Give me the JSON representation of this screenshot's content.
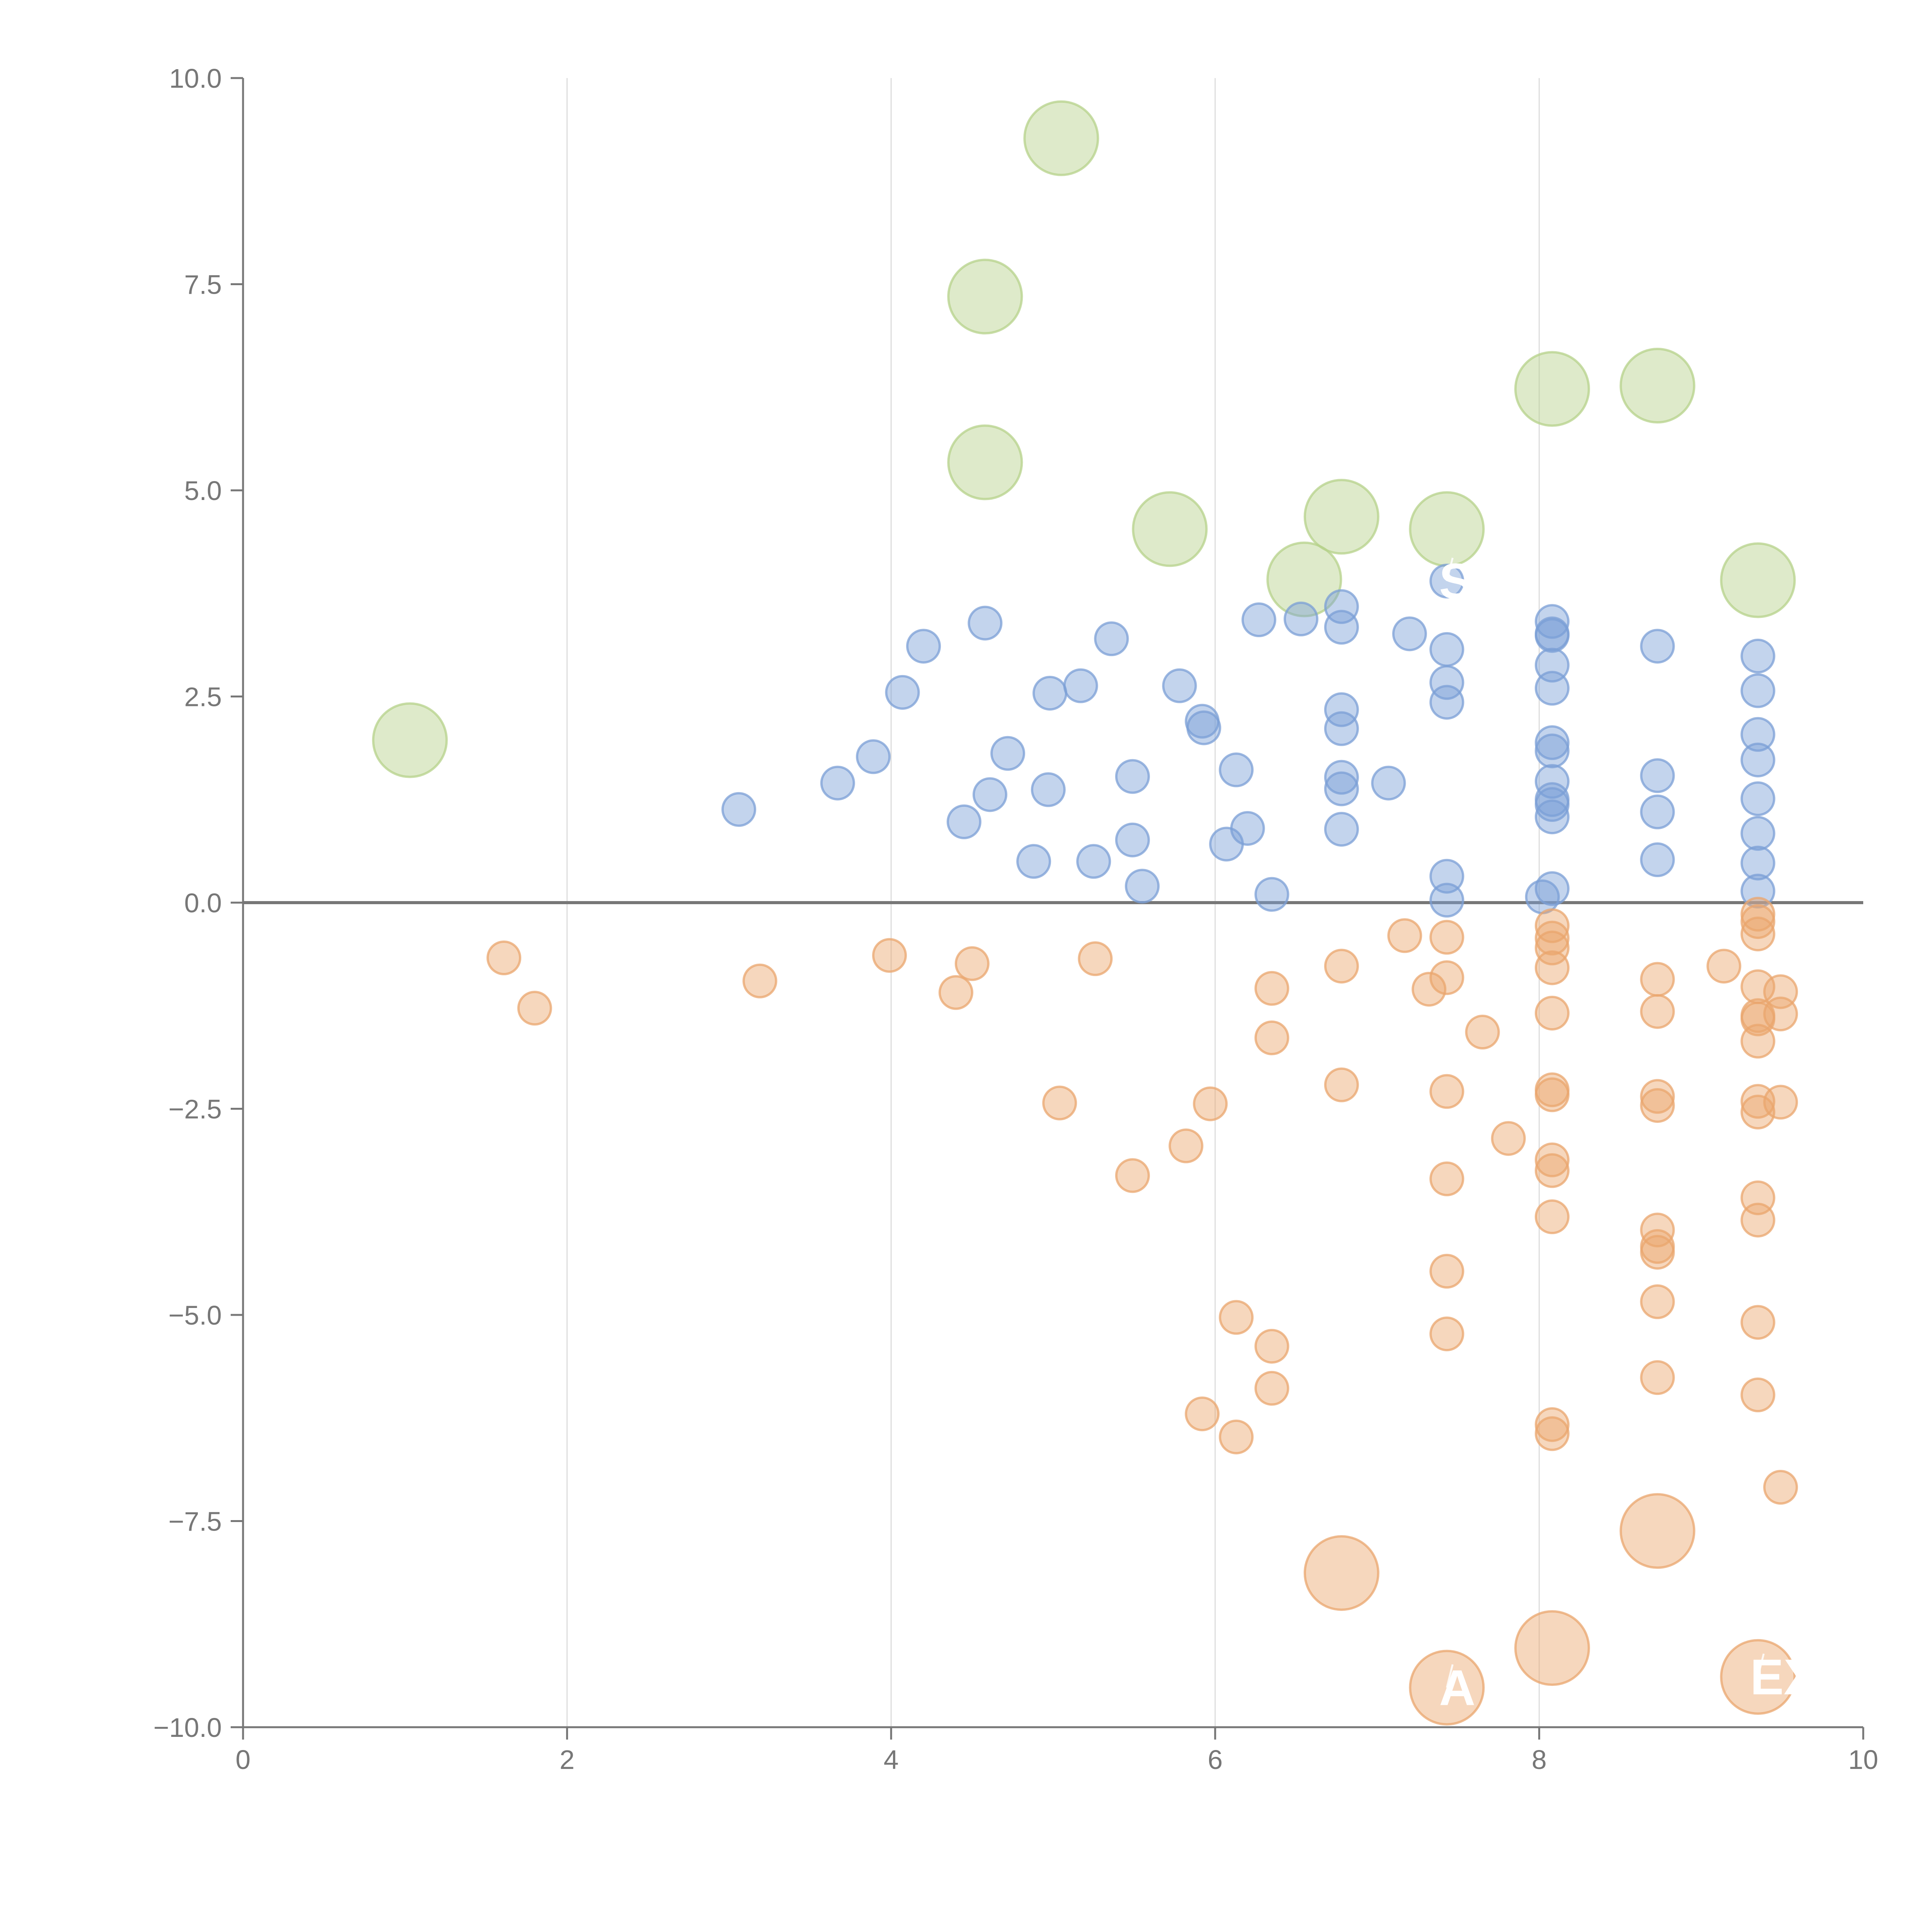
{
  "chart_data": {
    "type": "scatter",
    "title": "",
    "xlabel": "",
    "ylabel": "",
    "xlim": [
      0,
      10
    ],
    "ylim": [
      -10,
      10
    ],
    "xticks": [
      0,
      2,
      4,
      6,
      8,
      10
    ],
    "yticks": [
      -10,
      -7.5,
      -5,
      -2.5,
      0,
      2.5,
      5,
      7.5,
      10
    ],
    "xtick_labels": [
      "0",
      "2",
      "4",
      "6",
      "8",
      "10"
    ],
    "ytick_labels": [
      "−10.0",
      "−7.5",
      "−5.0",
      "−2.5",
      "0.0",
      "2.5",
      "5.0",
      "7.5",
      "10.0"
    ],
    "grid": {
      "vertical": true,
      "horizontal": false
    },
    "reference_line_y": 0,
    "series": [
      {
        "name": "highlighted-positive",
        "color": "#b5d18a",
        "size": "large",
        "points": [
          [
            1.03,
            1.97
          ],
          [
            4.58,
            7.35
          ],
          [
            4.58,
            5.34
          ],
          [
            5.05,
            9.27
          ],
          [
            5.72,
            4.53
          ],
          [
            6.55,
            3.92
          ],
          [
            6.78,
            4.68
          ],
          [
            7.43,
            4.53
          ],
          [
            8.08,
            6.23
          ],
          [
            8.73,
            6.27
          ],
          [
            9.35,
            3.91
          ]
        ]
      },
      {
        "name": "positive",
        "color": "#7b9fd6",
        "size": "small",
        "points": [
          [
            3.06,
            1.13
          ],
          [
            3.67,
            1.45
          ],
          [
            3.89,
            1.77
          ],
          [
            4.07,
            2.55
          ],
          [
            4.2,
            3.11
          ],
          [
            4.45,
            0.98
          ],
          [
            4.58,
            3.39
          ],
          [
            4.61,
            1.31
          ],
          [
            4.72,
            1.81
          ],
          [
            4.88,
            0.5
          ],
          [
            4.97,
            1.37
          ],
          [
            4.98,
            2.54
          ],
          [
            5.17,
            2.63
          ],
          [
            5.25,
            0.5
          ],
          [
            5.36,
            3.2
          ],
          [
            5.49,
            1.53
          ],
          [
            5.49,
            0.76
          ],
          [
            5.55,
            0.2
          ],
          [
            5.78,
            2.63
          ],
          [
            5.92,
            2.2
          ],
          [
            5.93,
            2.12
          ],
          [
            6.07,
            0.71
          ],
          [
            6.13,
            1.61
          ],
          [
            6.2,
            0.9
          ],
          [
            6.27,
            3.43
          ],
          [
            6.35,
            0.1
          ],
          [
            6.53,
            3.44
          ],
          [
            6.78,
            3.59
          ],
          [
            6.78,
            3.34
          ],
          [
            6.78,
            2.34
          ],
          [
            6.78,
            2.11
          ],
          [
            6.78,
            1.52
          ],
          [
            6.78,
            1.38
          ],
          [
            6.78,
            0.89
          ],
          [
            7.07,
            1.45
          ],
          [
            7.2,
            3.26
          ],
          [
            7.43,
            3.9
          ],
          [
            7.43,
            3.07
          ],
          [
            7.43,
            2.67
          ],
          [
            7.43,
            2.43
          ],
          [
            7.43,
            0.32
          ],
          [
            7.43,
            0.03
          ],
          [
            8.02,
            0.07
          ],
          [
            8.08,
            3.41
          ],
          [
            8.08,
            3.24
          ],
          [
            8.08,
            3.26
          ],
          [
            8.08,
            2.88
          ],
          [
            8.08,
            2.6
          ],
          [
            8.08,
            1.94
          ],
          [
            8.08,
            1.84
          ],
          [
            8.08,
            1.47
          ],
          [
            8.08,
            1.25
          ],
          [
            8.08,
            1.19
          ],
          [
            8.08,
            1.04
          ],
          [
            8.08,
            0.17
          ],
          [
            8.73,
            3.11
          ],
          [
            8.73,
            1.54
          ],
          [
            8.73,
            1.1
          ],
          [
            8.73,
            0.52
          ],
          [
            9.35,
            2.99
          ],
          [
            9.35,
            2.57
          ],
          [
            9.35,
            2.04
          ],
          [
            9.35,
            1.73
          ],
          [
            9.35,
            1.26
          ],
          [
            9.35,
            0.84
          ],
          [
            9.35,
            0.48
          ],
          [
            9.35,
            0.14
          ]
        ]
      },
      {
        "name": "negative",
        "color": "#eaa66d",
        "size": "small",
        "points": [
          [
            1.61,
            -0.67
          ],
          [
            1.8,
            -1.28
          ],
          [
            3.19,
            -0.95
          ],
          [
            3.99,
            -0.64
          ],
          [
            4.4,
            -1.09
          ],
          [
            4.5,
            -0.74
          ],
          [
            5.04,
            -2.43
          ],
          [
            5.26,
            -0.68
          ],
          [
            5.49,
            -3.31
          ],
          [
            5.82,
            -2.95
          ],
          [
            5.92,
            -6.2
          ],
          [
            5.97,
            -2.44
          ],
          [
            6.13,
            -5.03
          ],
          [
            6.13,
            -6.48
          ],
          [
            6.35,
            -1.04
          ],
          [
            6.35,
            -1.64
          ],
          [
            6.35,
            -5.38
          ],
          [
            6.35,
            -5.89
          ],
          [
            6.78,
            -0.77
          ],
          [
            6.78,
            -2.21
          ],
          [
            7.17,
            -0.4
          ],
          [
            7.32,
            -1.05
          ],
          [
            7.43,
            -0.42
          ],
          [
            7.43,
            -0.91
          ],
          [
            7.43,
            -2.29
          ],
          [
            7.43,
            -3.35
          ],
          [
            7.43,
            -4.47
          ],
          [
            7.43,
            -5.23
          ],
          [
            7.65,
            -1.57
          ],
          [
            7.81,
            -2.86
          ],
          [
            8.08,
            -0.28
          ],
          [
            8.08,
            -0.43
          ],
          [
            8.08,
            -0.55
          ],
          [
            8.08,
            -0.79
          ],
          [
            8.08,
            -1.34
          ],
          [
            8.08,
            -2.27
          ],
          [
            8.08,
            -2.33
          ],
          [
            8.08,
            -3.12
          ],
          [
            8.08,
            -3.25
          ],
          [
            8.08,
            -3.81
          ],
          [
            8.08,
            -6.33
          ],
          [
            8.08,
            -6.44
          ],
          [
            8.73,
            -0.93
          ],
          [
            8.73,
            -1.32
          ],
          [
            8.73,
            -2.35
          ],
          [
            8.73,
            -2.46
          ],
          [
            8.73,
            -3.97
          ],
          [
            8.73,
            -4.17
          ],
          [
            8.73,
            -4.24
          ],
          [
            8.73,
            -4.84
          ],
          [
            8.73,
            -5.76
          ],
          [
            9.14,
            -0.77
          ],
          [
            9.35,
            -0.14
          ],
          [
            9.35,
            -0.23
          ],
          [
            9.35,
            -0.38
          ],
          [
            9.35,
            -1.02
          ],
          [
            9.35,
            -1.37
          ],
          [
            9.35,
            -1.41
          ],
          [
            9.35,
            -1.68
          ],
          [
            9.35,
            -2.41
          ],
          [
            9.35,
            -2.54
          ],
          [
            9.35,
            -3.58
          ],
          [
            9.35,
            -3.85
          ],
          [
            9.35,
            -5.09
          ],
          [
            9.35,
            -5.97
          ],
          [
            9.49,
            -1.08
          ],
          [
            9.49,
            -1.35
          ],
          [
            9.49,
            -2.42
          ],
          [
            9.49,
            -7.09
          ]
        ]
      },
      {
        "name": "highlighted-negative",
        "color": "#eaa66d",
        "size": "large",
        "points": [
          [
            6.78,
            -8.13
          ],
          [
            7.43,
            -9.52
          ],
          [
            8.08,
            -9.04
          ],
          [
            8.73,
            -7.62
          ],
          [
            9.35,
            -9.39
          ]
        ]
      }
    ],
    "annotations": [
      {
        "text": "S",
        "x": 7.43,
        "y": 3.9
      },
      {
        "text": "A",
        "x": 7.43,
        "y": -9.52
      },
      {
        "text": "EXS",
        "x": 9.35,
        "y": -9.39
      }
    ]
  }
}
